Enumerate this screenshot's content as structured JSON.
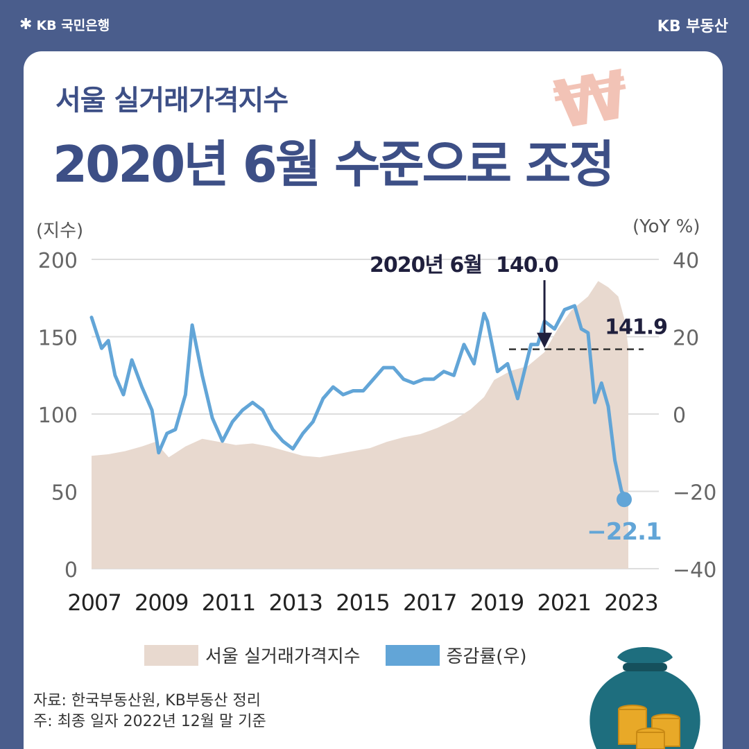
{
  "header": {
    "bank_logo_text": "KB 국민은행",
    "brand_right": "KB 부동산"
  },
  "subtitle": "서울 실거래가격지수",
  "title": "2020년 6월 수준으로 조정",
  "axis": {
    "left_unit": "(지수)",
    "right_unit": "(YoY %)"
  },
  "legend": {
    "area": "서울 실거래가격지수",
    "line": "증감률(우)"
  },
  "source": {
    "line1": "자료: 한국부동산원, KB부동산 정리",
    "line2": "주: 최종 일자 2022년 12월 말 기준"
  },
  "colors": {
    "background": "#4a5d8c",
    "title": "#3d4f86",
    "area": "#e8d9cf",
    "line": "#62a5d7",
    "annotation": "#1f1f3d"
  },
  "chart_data": {
    "type": "area",
    "x_tick_labels": [
      "2007",
      "2009",
      "2011",
      "2013",
      "2015",
      "2017",
      "2019",
      "2021",
      "2023"
    ],
    "ylim_left": [
      0,
      200
    ],
    "yticks_left": [
      "200",
      "150",
      "100",
      "50",
      "0"
    ],
    "ylim_right": [
      -40,
      40
    ],
    "yticks_right": [
      "40",
      "20",
      "0",
      "−20",
      "−40"
    ],
    "grid": true,
    "series": [
      {
        "name": "서울 실거래가격지수",
        "type": "area",
        "axis": "left",
        "x": [
          2007.0,
          2007.5,
          2008.0,
          2008.5,
          2008.9,
          2009.3,
          2009.8,
          2010.3,
          2010.8,
          2011.3,
          2011.8,
          2012.3,
          2012.8,
          2013.3,
          2013.8,
          2014.3,
          2014.8,
          2015.3,
          2015.8,
          2016.3,
          2016.8,
          2017.3,
          2017.8,
          2018.3,
          2018.7,
          2019.0,
          2019.5,
          2020.0,
          2020.5,
          2020.9,
          2021.3,
          2021.8,
          2022.1,
          2022.4,
          2022.7,
          2022.9,
          2023.0
        ],
        "values": [
          73,
          74,
          76,
          79,
          82,
          72,
          79,
          84,
          82,
          80,
          81,
          79,
          76,
          73,
          72,
          74,
          76,
          78,
          82,
          85,
          87,
          91,
          96,
          103,
          111,
          122,
          128,
          131,
          140,
          155,
          167,
          176,
          186,
          182,
          176,
          160,
          143
        ]
      },
      {
        "name": "증감률(우)",
        "type": "line",
        "axis": "right",
        "x": [
          2007.0,
          2007.3,
          2007.5,
          2007.7,
          2007.95,
          2008.2,
          2008.5,
          2008.8,
          2009.0,
          2009.25,
          2009.5,
          2009.8,
          2010.0,
          2010.3,
          2010.6,
          2010.9,
          2011.2,
          2011.5,
          2011.8,
          2012.1,
          2012.4,
          2012.7,
          2013.0,
          2013.3,
          2013.6,
          2013.9,
          2014.2,
          2014.5,
          2014.8,
          2015.1,
          2015.4,
          2015.7,
          2016.0,
          2016.3,
          2016.6,
          2016.9,
          2017.2,
          2017.5,
          2017.8,
          2018.1,
          2018.4,
          2018.7,
          2018.8,
          2019.1,
          2019.4,
          2019.7,
          2019.9,
          2020.1,
          2020.3,
          2020.5,
          2020.8,
          2021.1,
          2021.4,
          2021.6,
          2021.8,
          2022.0,
          2022.2,
          2022.4,
          2022.6,
          2022.8,
          2023.0
        ],
        "values": [
          25,
          17,
          19,
          10,
          5,
          14,
          7,
          1,
          -10,
          -5,
          -4,
          5,
          23,
          10,
          -1,
          -7,
          -2,
          1,
          3,
          1,
          -4,
          -7,
          -9,
          -5,
          -2,
          4,
          7,
          5,
          6,
          6,
          9,
          12,
          12,
          9,
          8,
          9,
          9,
          11,
          10,
          18,
          13,
          26,
          24,
          11,
          13,
          4,
          11,
          18,
          18,
          24,
          22,
          27,
          28,
          22,
          21,
          3,
          8,
          2,
          -12,
          -20,
          -22.1
        ]
      }
    ],
    "annotations": [
      {
        "label": "2020년 6월",
        "value_label": "140.0",
        "x": 2020.5,
        "y": 140.0,
        "axis": "left"
      },
      {
        "label": "141.9",
        "y": 141.9,
        "axis": "left"
      },
      {
        "label": "−22.1",
        "x": 2023.0,
        "y": -22.1,
        "axis": "right"
      }
    ]
  }
}
